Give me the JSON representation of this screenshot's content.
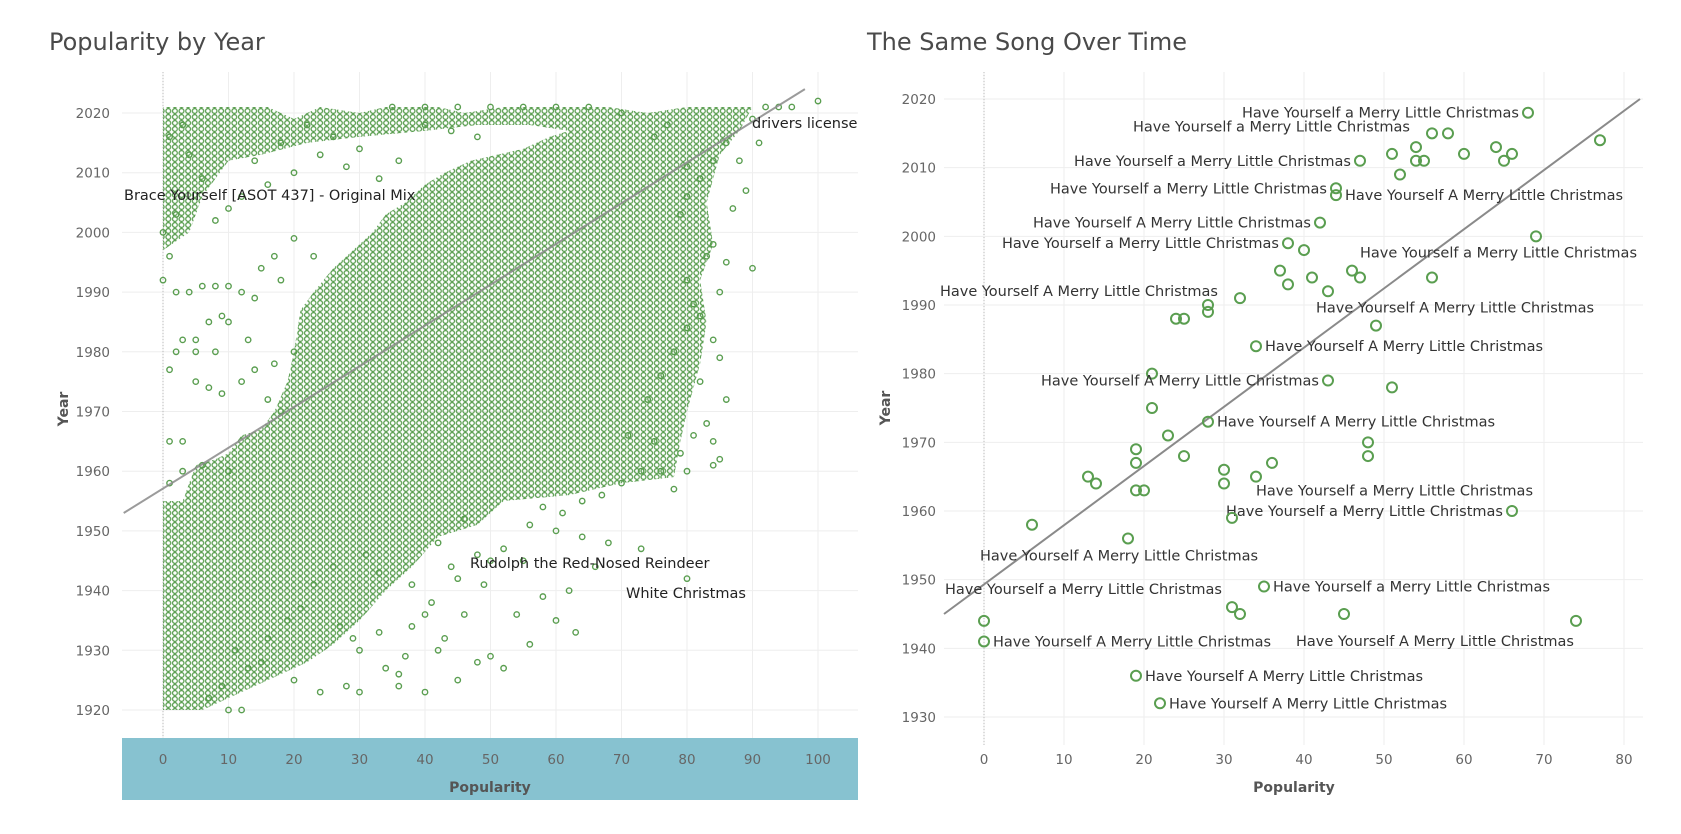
{
  "left_title": "Popularity by Year",
  "right_title": "The Same Song Over Time",
  "chart_data": [
    {
      "type": "scatter",
      "title": "Popularity by Year",
      "xlabel": "Popularity",
      "ylabel": "Year",
      "xlim": [
        -6,
        106
      ],
      "ylim": [
        1914,
        2025
      ],
      "xticks": [
        0,
        10,
        20,
        30,
        40,
        50,
        60,
        70,
        80,
        90,
        100
      ],
      "yticks": [
        1920,
        1930,
        1940,
        1950,
        1960,
        1970,
        1980,
        1990,
        2000,
        2010,
        2020
      ],
      "grid": true,
      "colors": {
        "marker": "#5a9e50",
        "trend": "#8a8a8a",
        "x_band": "#87c2d0"
      },
      "trend_line": {
        "x1": -6,
        "y1": 1953,
        "x2": 98,
        "y2": 2024
      },
      "annotations": [
        {
          "label": "drivers license",
          "x": 100,
          "y": 2021
        },
        {
          "label": "Brace Yourself [ASOT 437] - Original Mix",
          "x": 0,
          "y": 2007
        },
        {
          "label": "Rudolph the Red-Nosed Reindeer",
          "x": 47,
          "y": 1944
        },
        {
          "label": "White Christmas",
          "x": 80,
          "y": 1942
        }
      ],
      "points": [
        [
          63,
          1933
        ],
        [
          58,
          1939
        ],
        [
          80,
          1942
        ],
        [
          73,
          1947
        ],
        [
          68,
          1948
        ],
        [
          64,
          1949
        ],
        [
          60,
          1950
        ],
        [
          55,
          1945
        ],
        [
          52,
          1947
        ],
        [
          50,
          1945
        ],
        [
          48,
          1946
        ],
        [
          45,
          1942
        ],
        [
          44,
          1944
        ],
        [
          43,
          1932
        ],
        [
          42,
          1930
        ],
        [
          41,
          1938
        ],
        [
          40,
          1936
        ],
        [
          38,
          1934
        ],
        [
          37,
          1929
        ],
        [
          36,
          1924
        ],
        [
          34,
          1927
        ],
        [
          33,
          1933
        ],
        [
          30,
          1930
        ],
        [
          29,
          1932
        ],
        [
          27,
          1934
        ],
        [
          46,
          1936
        ],
        [
          50,
          1929
        ],
        [
          54,
          1936
        ],
        [
          49,
          1941
        ],
        [
          42,
          1948
        ],
        [
          46,
          1952
        ],
        [
          56,
          1951
        ],
        [
          58,
          1954
        ],
        [
          61,
          1953
        ],
        [
          64,
          1955
        ],
        [
          67,
          1956
        ],
        [
          70,
          1958
        ],
        [
          76,
          1960
        ],
        [
          80,
          1960
        ],
        [
          84,
          1961
        ],
        [
          85,
          1962
        ],
        [
          84,
          1965
        ],
        [
          79,
          1963
        ],
        [
          78,
          1957
        ],
        [
          75,
          1965
        ],
        [
          71,
          1966
        ],
        [
          73,
          1960
        ],
        [
          74,
          1972
        ],
        [
          76,
          1976
        ],
        [
          78,
          1980
        ],
        [
          80,
          1984
        ],
        [
          82,
          1986
        ],
        [
          84,
          1982
        ],
        [
          85,
          1979
        ],
        [
          86,
          1972
        ],
        [
          83,
          1968
        ],
        [
          81,
          1966
        ],
        [
          82,
          1975
        ],
        [
          81,
          1988
        ],
        [
          85,
          1990
        ],
        [
          80,
          1992
        ],
        [
          83,
          1996
        ],
        [
          86,
          1995
        ],
        [
          84,
          1998
        ],
        [
          87,
          2004
        ],
        [
          89,
          2007
        ],
        [
          88,
          2012
        ],
        [
          90,
          1994
        ],
        [
          91,
          2015
        ],
        [
          90,
          2019
        ],
        [
          92,
          2021
        ],
        [
          94,
          2021
        ],
        [
          96,
          2021
        ],
        [
          100,
          2022
        ],
        [
          86,
          2015
        ],
        [
          84,
          2012
        ],
        [
          82,
          2009
        ],
        [
          80,
          2006
        ],
        [
          79,
          2003
        ],
        [
          80,
          2011
        ],
        [
          75,
          2016
        ],
        [
          77,
          2018
        ],
        [
          70,
          2020
        ],
        [
          65,
          2021
        ],
        [
          60,
          2021
        ],
        [
          55,
          2021
        ],
        [
          50,
          2021
        ],
        [
          45,
          2021
        ],
        [
          40,
          2021
        ],
        [
          35,
          2021
        ],
        [
          40,
          2018
        ],
        [
          44,
          2017
        ],
        [
          48,
          2016
        ],
        [
          36,
          2012
        ],
        [
          33,
          2009
        ],
        [
          30,
          2014
        ],
        [
          28,
          2011
        ],
        [
          26,
          2016
        ],
        [
          24,
          2013
        ],
        [
          22,
          2018
        ],
        [
          20,
          2010
        ],
        [
          18,
          2015
        ],
        [
          16,
          2008
        ],
        [
          14,
          2012
        ],
        [
          12,
          2006
        ],
        [
          10,
          2004
        ],
        [
          8,
          2002
        ],
        [
          6,
          2009
        ],
        [
          4,
          2013
        ],
        [
          3,
          2018
        ],
        [
          1,
          2016
        ],
        [
          2,
          2003
        ],
        [
          0,
          2000
        ],
        [
          1,
          1996
        ],
        [
          0,
          1992
        ],
        [
          2,
          1990
        ],
        [
          4,
          1990
        ],
        [
          6,
          1991
        ],
        [
          8,
          1991
        ],
        [
          10,
          1991
        ],
        [
          12,
          1990
        ],
        [
          14,
          1989
        ],
        [
          9,
          1986
        ],
        [
          7,
          1985
        ],
        [
          5,
          1982
        ],
        [
          3,
          1982
        ],
        [
          2,
          1980
        ],
        [
          5,
          1980
        ],
        [
          8,
          1980
        ],
        [
          1,
          1977
        ],
        [
          5,
          1975
        ],
        [
          7,
          1974
        ],
        [
          9,
          1973
        ],
        [
          12,
          1975
        ],
        [
          14,
          1977
        ],
        [
          16,
          1972
        ],
        [
          18,
          1970
        ],
        [
          17,
          1978
        ],
        [
          20,
          1980
        ],
        [
          23,
          1996
        ],
        [
          20,
          1999
        ],
        [
          18,
          1992
        ],
        [
          17,
          1996
        ],
        [
          15,
          1994
        ],
        [
          10,
          1985
        ],
        [
          13,
          1982
        ],
        [
          3,
          1965
        ],
        [
          1,
          1965
        ],
        [
          3,
          1960
        ],
        [
          6,
          1961
        ],
        [
          10,
          1960
        ],
        [
          1,
          1958
        ],
        [
          10,
          1920
        ],
        [
          12,
          1920
        ],
        [
          20,
          1925
        ],
        [
          24,
          1923
        ],
        [
          28,
          1924
        ],
        [
          30,
          1923
        ],
        [
          36,
          1926
        ],
        [
          40,
          1923
        ],
        [
          45,
          1925
        ],
        [
          48,
          1928
        ],
        [
          52,
          1927
        ],
        [
          56,
          1931
        ],
        [
          60,
          1935
        ],
        [
          62,
          1940
        ],
        [
          66,
          1944
        ],
        [
          38,
          1941
        ],
        [
          33,
          1943
        ],
        [
          31,
          1946
        ],
        [
          26,
          1944
        ],
        [
          23,
          1941
        ],
        [
          21,
          1937
        ],
        [
          19,
          1935
        ],
        [
          16,
          1932
        ],
        [
          15,
          1928
        ],
        [
          13,
          1927
        ],
        [
          11,
          1930
        ],
        [
          9,
          1924
        ],
        [
          7,
          1922
        ]
      ]
    },
    {
      "type": "scatter",
      "title": "The Same Song Over Time",
      "xlabel": "Popularity",
      "ylabel": "Year",
      "xlim": [
        -5,
        82
      ],
      "ylim": [
        1925,
        2024
      ],
      "xticks": [
        0,
        10,
        20,
        30,
        40,
        50,
        60,
        70,
        80
      ],
      "yticks": [
        1930,
        1940,
        1950,
        1960,
        1970,
        1980,
        1990,
        2000,
        2010,
        2020
      ],
      "grid": true,
      "colors": {
        "marker": "#5a9e50",
        "trend": "#8a8a8a"
      },
      "trend_line": {
        "x1": -5,
        "y1": 1945,
        "x2": 82,
        "y2": 2020
      },
      "points": [
        {
          "x": 68,
          "y": 2018,
          "label": "Have Yourself a Merry Little Christmas",
          "side": "left"
        },
        {
          "x": 77,
          "y": 2014
        },
        {
          "x": 56,
          "y": 2015,
          "label": "Have Yourself a Merry Little Christmas",
          "side": "leftfar"
        },
        {
          "x": 58,
          "y": 2015
        },
        {
          "x": 54,
          "y": 2013
        },
        {
          "x": 51,
          "y": 2012
        },
        {
          "x": 54,
          "y": 2011
        },
        {
          "x": 55,
          "y": 2011
        },
        {
          "x": 52,
          "y": 2009
        },
        {
          "x": 60,
          "y": 2012
        },
        {
          "x": 64,
          "y": 2013
        },
        {
          "x": 66,
          "y": 2012
        },
        {
          "x": 65,
          "y": 2011
        },
        {
          "x": 47,
          "y": 2011,
          "label": "Have Yourself a Merry Little Christmas",
          "side": "left"
        },
        {
          "x": 44,
          "y": 2007,
          "label": "Have Yourself a Merry Little Christmas",
          "side": "left"
        },
        {
          "x": 44,
          "y": 2006,
          "label": "Have Yourself A Merry Little Christmas",
          "side": "right"
        },
        {
          "x": 42,
          "y": 2002,
          "label": "Have Yourself A Merry Little Christmas",
          "side": "left"
        },
        {
          "x": 38,
          "y": 1999,
          "label": "Have Yourself a Merry Little Christmas",
          "side": "left"
        },
        {
          "x": 40,
          "y": 1998
        },
        {
          "x": 69,
          "y": 2000
        },
        {
          "x": 56,
          "y": 1994,
          "label": "Have Yourself a Merry Little Christmas",
          "side": "rightup"
        },
        {
          "x": 37,
          "y": 1995
        },
        {
          "x": 41,
          "y": 1994
        },
        {
          "x": 46,
          "y": 1995
        },
        {
          "x": 47,
          "y": 1994
        },
        {
          "x": 38,
          "y": 1993
        },
        {
          "x": 43,
          "y": 1992
        },
        {
          "x": 32,
          "y": 1991,
          "label": "Have Yourself A Merry Little Christmas",
          "side": "leftfar"
        },
        {
          "x": 28,
          "y": 1990
        },
        {
          "x": 28,
          "y": 1989
        },
        {
          "x": 24,
          "y": 1988
        },
        {
          "x": 25,
          "y": 1988
        },
        {
          "x": 49,
          "y": 1987,
          "label": "Have Yourself A Merry Little Christmas",
          "side": "upright"
        },
        {
          "x": 34,
          "y": 1984,
          "label": "Have Yourself A Merry Little Christmas",
          "side": "right"
        },
        {
          "x": 21,
          "y": 1980
        },
        {
          "x": 43,
          "y": 1979,
          "label": "Have Yourself A Merry Little Christmas",
          "side": "left"
        },
        {
          "x": 51,
          "y": 1978
        },
        {
          "x": 21,
          "y": 1975
        },
        {
          "x": 28,
          "y": 1973,
          "label": "Have Yourself A Merry Little Christmas",
          "side": "right"
        },
        {
          "x": 23,
          "y": 1971
        },
        {
          "x": 19,
          "y": 1969
        },
        {
          "x": 48,
          "y": 1970
        },
        {
          "x": 25,
          "y": 1968
        },
        {
          "x": 48,
          "y": 1968
        },
        {
          "x": 19,
          "y": 1967
        },
        {
          "x": 36,
          "y": 1967
        },
        {
          "x": 30,
          "y": 1966
        },
        {
          "x": 13,
          "y": 1965
        },
        {
          "x": 34,
          "y": 1965,
          "label": "Have Yourself a Merry Little Christmas",
          "side": "rightdown"
        },
        {
          "x": 14,
          "y": 1964
        },
        {
          "x": 30,
          "y": 1964
        },
        {
          "x": 19,
          "y": 1963
        },
        {
          "x": 20,
          "y": 1963
        },
        {
          "x": 66,
          "y": 1960,
          "label": "Have Yourself a Merry Little Christmas",
          "side": "left"
        },
        {
          "x": 31,
          "y": 1959
        },
        {
          "x": 6,
          "y": 1958
        },
        {
          "x": 18,
          "y": 1956,
          "label": "Have Yourself A Merry Little Christmas",
          "side": "below"
        },
        {
          "x": 35,
          "y": 1949,
          "label": "Have Yourself a Merry Little Christmas",
          "side": "right"
        },
        {
          "x": 31,
          "y": 1946,
          "label": "Have Yourself a Merry Little Christmas",
          "side": "leftup"
        },
        {
          "x": 32,
          "y": 1945
        },
        {
          "x": 45,
          "y": 1945
        },
        {
          "x": 74,
          "y": 1944,
          "label": "Have Yourself A Merry Little Christmas",
          "side": "leftdown"
        },
        {
          "x": 0,
          "y": 1944
        },
        {
          "x": 0,
          "y": 1941,
          "label": "Have Yourself A Merry Little Christmas",
          "side": "right"
        },
        {
          "x": 19,
          "y": 1936,
          "label": "Have Yourself A Merry Little Christmas",
          "side": "right"
        },
        {
          "x": 22,
          "y": 1932,
          "label": "Have Yourself A Merry Little Christmas",
          "side": "right"
        }
      ]
    }
  ]
}
